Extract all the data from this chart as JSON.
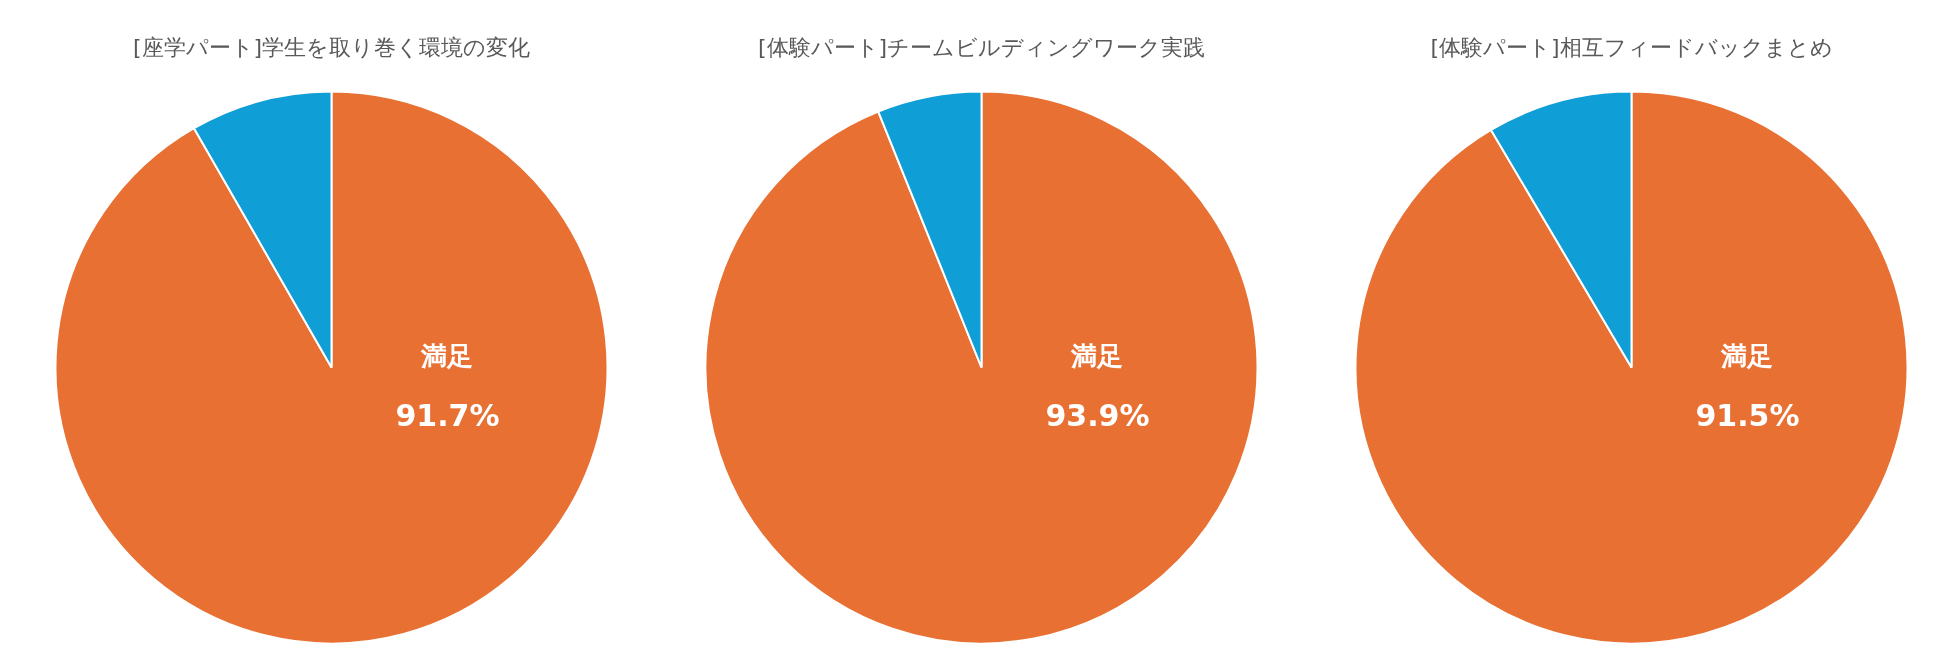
{
  "chart_data": [
    {
      "type": "pie",
      "title": "[座学パート]学生を取り巻く環境の変化",
      "categories": [
        "満足",
        null
      ],
      "values": [
        91.7,
        8.3
      ],
      "colors": [
        "#e87033",
        "#0f9ed6"
      ],
      "value_labels": [
        "91.7%",
        null
      ]
    },
    {
      "type": "pie",
      "title": "[体験パート]チームビルディングワーク実践",
      "categories": [
        "満足",
        null
      ],
      "values": [
        93.9,
        6.1
      ],
      "colors": [
        "#e87033",
        "#0f9ed6"
      ],
      "value_labels": [
        "93.9%",
        null
      ]
    },
    {
      "type": "pie",
      "title": "[体験パート]相互フィードバックまとめ",
      "categories": [
        "満足",
        null
      ],
      "values": [
        91.5,
        8.5
      ],
      "colors": [
        "#e87033",
        "#0f9ed6"
      ],
      "value_labels": [
        "91.5%",
        null
      ]
    }
  ]
}
